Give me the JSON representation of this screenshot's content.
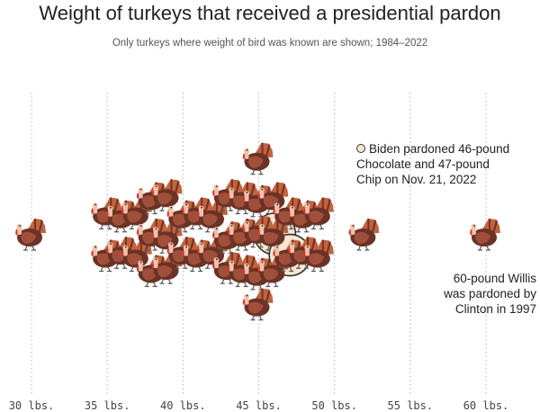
{
  "chart_data": {
    "type": "scatter",
    "title": "Weight of turkeys that received a presidential pardon",
    "subtitle": "Only turkeys where weight of bird was known are shown; 1984–2022",
    "x_unit": "lbs.",
    "xlim": [
      28.5,
      61.5
    ],
    "x_ticks": [
      30,
      35,
      40,
      45,
      50,
      55,
      60
    ],
    "x_tick_labels": [
      "30 lbs.",
      "35 lbs.",
      "40 lbs.",
      "45 lbs.",
      "50 lbs.",
      "55 lbs.",
      "60 lbs."
    ],
    "grid": "vertical dotted",
    "points": [
      {
        "weight": 30,
        "count": 1
      },
      {
        "weight": 35,
        "count": 2
      },
      {
        "weight": 36,
        "count": 2
      },
      {
        "weight": 37,
        "count": 2
      },
      {
        "weight": 38,
        "count": 3
      },
      {
        "weight": 39,
        "count": 3
      },
      {
        "weight": 40,
        "count": 2
      },
      {
        "weight": 41,
        "count": 2
      },
      {
        "weight": 42,
        "count": 2
      },
      {
        "weight": 43,
        "count": 3
      },
      {
        "weight": 44,
        "count": 3
      },
      {
        "weight": 45,
        "count": 5
      },
      {
        "weight": 46,
        "count": 3,
        "highlight": 1
      },
      {
        "weight": 47,
        "count": 2,
        "highlight": 1
      },
      {
        "weight": 48,
        "count": 2
      },
      {
        "weight": 49,
        "count": 2
      },
      {
        "weight": 52,
        "count": 1
      },
      {
        "weight": 60,
        "count": 1
      }
    ],
    "annotations": [
      {
        "target": "biden",
        "lines": [
          "Biden pardoned 46-pound",
          "Chocolate and 47-pound",
          "Chip on Nov. 21, 2022"
        ]
      },
      {
        "target": "willis",
        "lines": [
          "60-pound Willis",
          "was pardoned by",
          "Clinton in 1997"
        ]
      }
    ],
    "colors": {
      "body": "#6b3226",
      "wing": "#a0503a",
      "tail": "#c0633f",
      "tail_dark": "#7a3222",
      "head": "#f3c1aa",
      "wattle": "#d8342c",
      "feet": "#555555",
      "highlight_fill": "#f7e7d0",
      "highlight_stroke": "#333333",
      "grid": "#b5b5b5",
      "text": "#222222"
    }
  }
}
